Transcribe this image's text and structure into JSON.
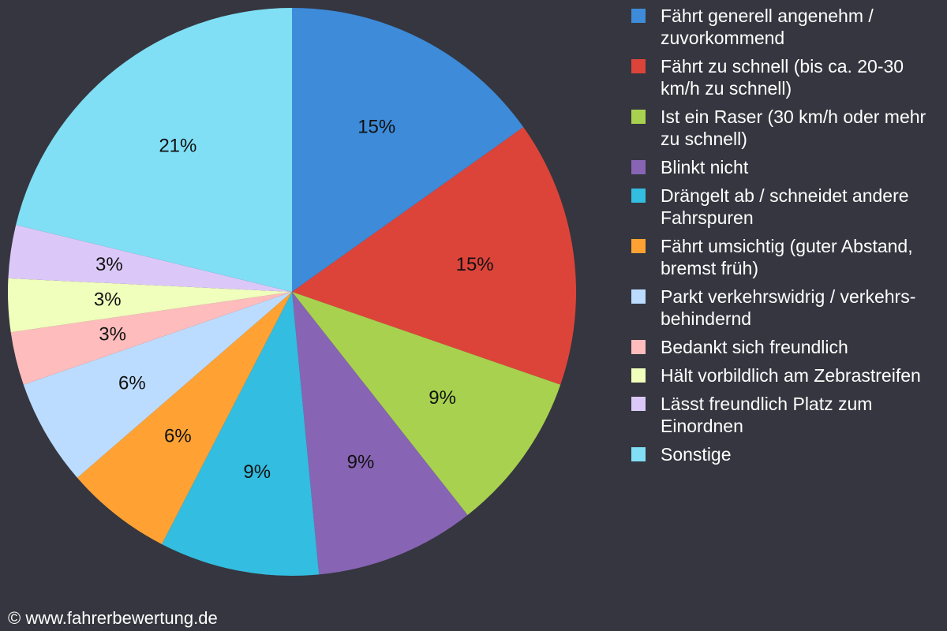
{
  "chart_data": {
    "type": "pie",
    "categories": [
      "Fährt generell angenehm / zuvorkommend",
      "Fährt zu schnell (bis ca. 20-30 km/h zu schnell)",
      "Ist ein Raser (30 km/h oder mehr zu schnell)",
      "Blinkt nicht",
      "Drängelt ab / schneidet andere Fahrspuren",
      "Fährt umsichtig (guter Abstand, bremst früh)",
      "Parkt verkehrswidrig / verkehrs-behindernd",
      "Bedankt sich freundlich",
      "Hält vorbildlich am Zebrastreifen",
      "Lässt freundlich Platz zum Einordnen",
      "Sonstige"
    ],
    "values": [
      15,
      15,
      9,
      9,
      9,
      6,
      6,
      3,
      3,
      3,
      21
    ],
    "value_labels": [
      "15%",
      "15%",
      "9%",
      "9%",
      "9%",
      "6%",
      "6%",
      "3%",
      "3%",
      "3%",
      "21%"
    ],
    "colors": [
      "#3d8bd9",
      "#dc443a",
      "#a8d14f",
      "#8764b4",
      "#33bde0",
      "#ffa233",
      "#bcdcff",
      "#ffbcbc",
      "#f0ffbc",
      "#dcc8f8",
      "#80dff5"
    ],
    "legend": "right"
  },
  "footer": "© www.fahrerbewertung.de"
}
